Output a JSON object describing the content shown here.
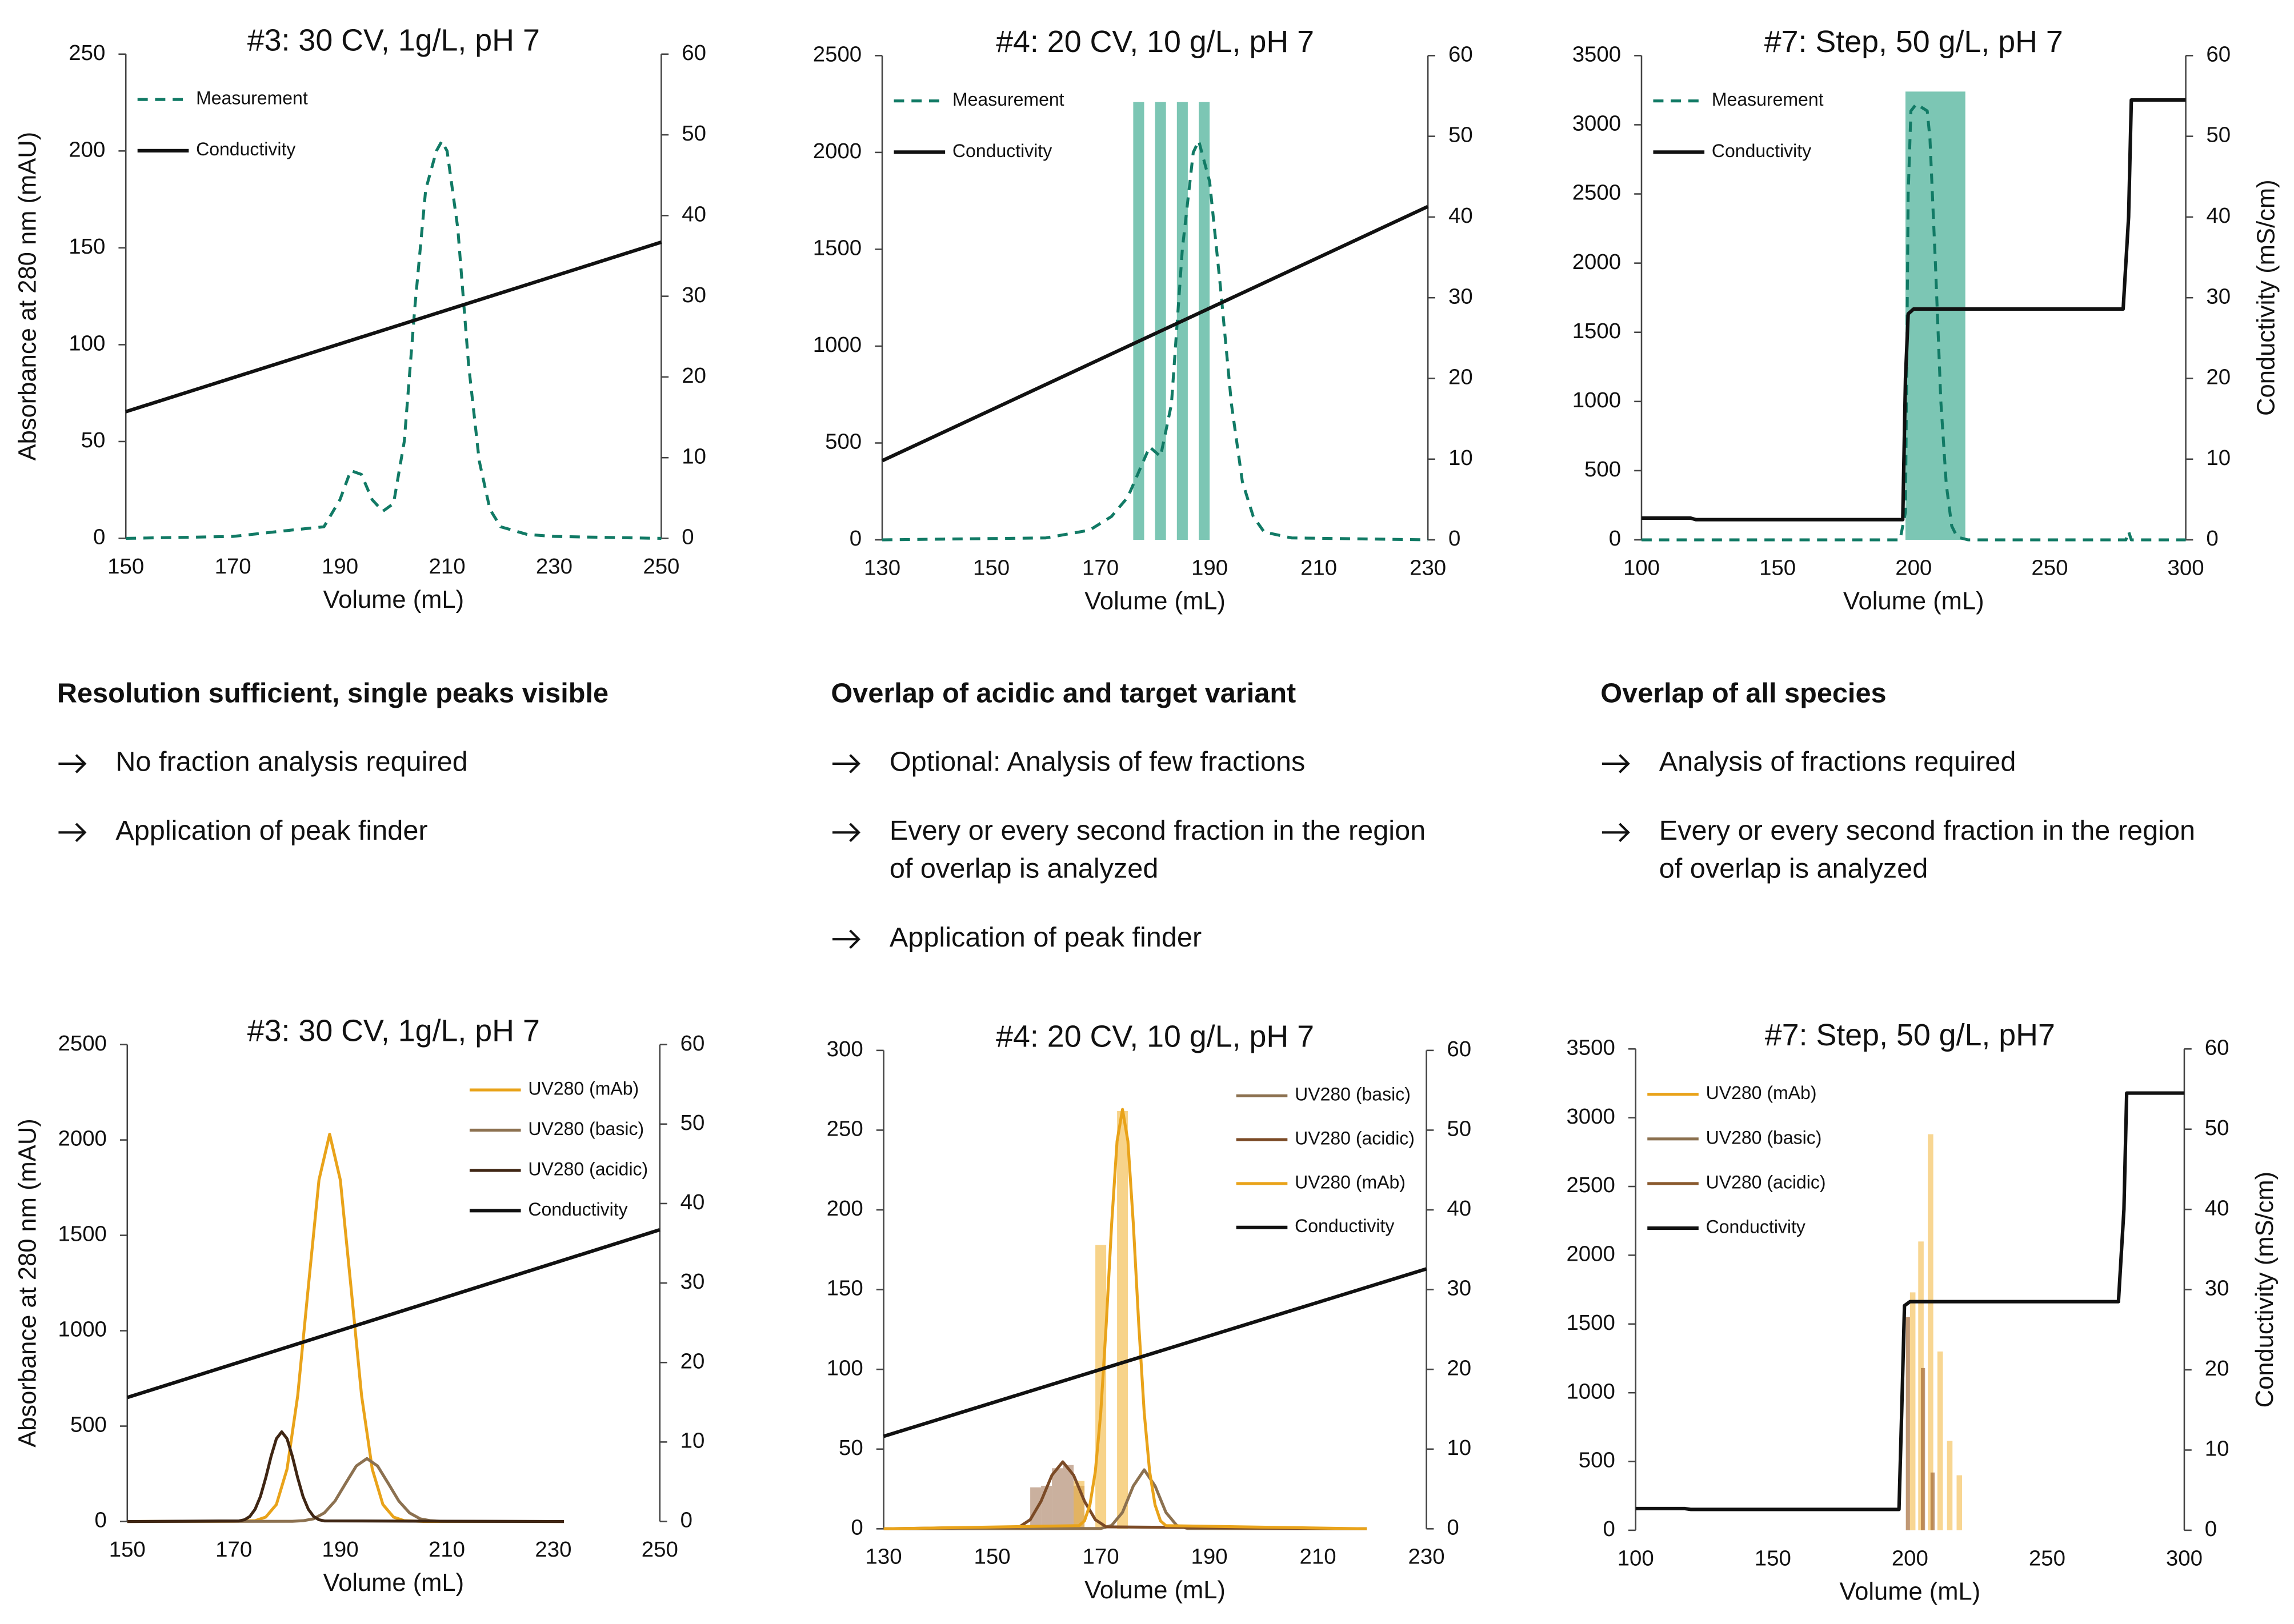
{
  "chart_data": [
    {
      "type": "line",
      "title": "#3: 30 CV, 1g/L, pH 7",
      "xlabel": "Volume (mL)",
      "ylabel": "Absorbance at 280 nm (mAU)",
      "xlim": [
        150,
        250
      ],
      "xticks": [
        150,
        170,
        190,
        210,
        230,
        250
      ],
      "ylim": [
        0,
        250
      ],
      "yticks": [
        0,
        50,
        100,
        150,
        200,
        250
      ],
      "y2lim": [
        0,
        60
      ],
      "y2ticks": [
        0,
        10,
        20,
        30,
        40,
        50,
        60
      ],
      "legend": "upper left",
      "series": [
        {
          "name": "Measurement",
          "color": "#117a65",
          "dash": true,
          "x": [
            150,
            170,
            180,
            187,
            190,
            192,
            194,
            196,
            198,
            200,
            202,
            204,
            206,
            208,
            209,
            210,
            212,
            214,
            216,
            218,
            220,
            225,
            230,
            250
          ],
          "values": [
            0,
            1,
            4,
            6,
            20,
            35,
            33,
            20,
            14,
            18,
            50,
            120,
            180,
            200,
            205,
            200,
            160,
            90,
            40,
            15,
            6,
            2,
            1,
            0
          ]
        },
        {
          "name": "Conductivity",
          "color": "#111111",
          "axis": "y2",
          "x": [
            150,
            250
          ],
          "values": [
            15.7,
            36.7
          ]
        }
      ]
    },
    {
      "type": "line",
      "title": "#4: 20 CV, 10 g/L, pH 7",
      "xlabel": "Volume (mL)",
      "xlim": [
        130,
        230
      ],
      "xticks": [
        130,
        150,
        170,
        190,
        210,
        230
      ],
      "ylim": [
        0,
        2500
      ],
      "yticks": [
        0,
        500,
        1000,
        1500,
        2000,
        2500
      ],
      "y2lim": [
        0,
        60
      ],
      "y2ticks": [
        0,
        10,
        20,
        30,
        40,
        50,
        60
      ],
      "legend": "upper left",
      "fractions": [
        {
          "color": "#5fb9a3d0",
          "edges": [
            [
              176,
              178
            ],
            [
              180,
              182
            ],
            [
              184,
              186
            ],
            [
              188,
              190
            ]
          ],
          "values": [
            2260,
            2260,
            2260,
            2260
          ]
        }
      ],
      "series": [
        {
          "name": "Measurement",
          "color": "#117a65",
          "dash": true,
          "x": [
            130,
            160,
            168,
            172,
            175,
            177,
            179,
            181,
            183,
            185,
            187,
            188,
            190,
            192,
            194,
            196,
            198,
            200,
            205,
            230
          ],
          "values": [
            0,
            10,
            50,
            120,
            220,
            350,
            480,
            430,
            700,
            1500,
            2000,
            2060,
            1850,
            1300,
            700,
            300,
            120,
            40,
            10,
            0
          ]
        },
        {
          "name": "Conductivity",
          "color": "#111111",
          "axis": "y2",
          "x": [
            130,
            230
          ],
          "values": [
            9.8,
            41.3
          ]
        }
      ]
    },
    {
      "type": "line",
      "title": "#7: Step, 50 g/L, pH 7",
      "xlabel": "Volume (mL)",
      "y2label": "Conductivity (mS/cm)",
      "xlim": [
        100,
        300
      ],
      "xticks": [
        100,
        150,
        200,
        250,
        300
      ],
      "ylim": [
        0,
        3500
      ],
      "yticks": [
        0,
        500,
        1000,
        1500,
        2000,
        2500,
        3000,
        3500
      ],
      "y2lim": [
        0,
        60
      ],
      "y2ticks": [
        0,
        10,
        20,
        30,
        40,
        50,
        60
      ],
      "legend": "upper left",
      "fractions": [
        {
          "color": "#5fb9a3d0",
          "edges": [
            [
              197,
              219
            ]
          ],
          "values": [
            3240
          ]
        }
      ],
      "series": [
        {
          "name": "Measurement",
          "color": "#117a65",
          "dash": true,
          "x": [
            100,
            195,
            197,
            198,
            199,
            201,
            205,
            206,
            208,
            210,
            212,
            214,
            216,
            220,
            278,
            279,
            280,
            300
          ],
          "values": [
            0,
            0,
            200,
            2500,
            3100,
            3150,
            3100,
            2900,
            2000,
            1000,
            400,
            100,
            20,
            0,
            0,
            60,
            0,
            0
          ]
        },
        {
          "name": "Conductivity",
          "color": "#111111",
          "axis": "y2",
          "x": [
            100,
            118,
            120,
            196,
            197,
            198,
            200,
            277,
            279,
            280,
            300
          ],
          "values": [
            2.7,
            2.7,
            2.5,
            2.5,
            20,
            28,
            28.6,
            28.6,
            40,
            54.5,
            54.5
          ]
        }
      ]
    },
    {
      "type": "line",
      "title": "#3: 30 CV, 1g/L, pH 7",
      "xlabel": "Volume (mL)",
      "ylabel": "Absorbance at 280 nm (mAU)",
      "xlim": [
        150,
        250
      ],
      "xticks": [
        150,
        170,
        190,
        210,
        230,
        250
      ],
      "ylim": [
        0,
        2500
      ],
      "yticks": [
        0,
        500,
        1000,
        1500,
        2000,
        2500
      ],
      "y2lim": [
        0,
        60
      ],
      "y2ticks": [
        0,
        10,
        20,
        30,
        40,
        50,
        60
      ],
      "legend": "upper right",
      "series": [
        {
          "name": "UV280 (mAb)",
          "color": "#e9a31a",
          "x": [
            150,
            170,
            174,
            176,
            178,
            180,
            182,
            184,
            186,
            188,
            190,
            192,
            194,
            196,
            198,
            200,
            202,
            206,
            232
          ],
          "values": [
            0,
            1,
            4,
            23,
            89,
            275,
            659,
            1231,
            1791,
            2030,
            1791,
            1231,
            659,
            275,
            89,
            23,
            4,
            0,
            0
          ]
        },
        {
          "name": "UV280 (basic)",
          "color": "#8c7150",
          "x": [
            150,
            181,
            183,
            185,
            187,
            189,
            191,
            193,
            195,
            197,
            199,
            201,
            203,
            205,
            207,
            209,
            232
          ],
          "values": [
            0,
            1,
            4,
            14,
            45,
            107,
            200,
            291,
            330,
            291,
            200,
            107,
            45,
            14,
            4,
            1,
            0
          ]
        },
        {
          "name": "UV280 (acidic)",
          "color": "#3f2614",
          "x": [
            150,
            171,
            172,
            173,
            174,
            175,
            176,
            177,
            178,
            179,
            180,
            181,
            182,
            183,
            184,
            185,
            186,
            187,
            232
          ],
          "values": [
            0,
            3,
            9,
            26,
            64,
            131,
            229,
            341,
            434,
            470,
            434,
            341,
            229,
            131,
            64,
            26,
            9,
            3,
            0
          ]
        },
        {
          "name": "Conductivity",
          "color": "#111111",
          "axis": "y2",
          "x": [
            150,
            250
          ],
          "values": [
            15.6,
            36.7
          ]
        }
      ]
    },
    {
      "type": "line",
      "title": "#4: 20 CV, 10 g/L, pH 7",
      "xlabel": "Volume (mL)",
      "xlim": [
        130,
        230
      ],
      "xticks": [
        130,
        150,
        170,
        190,
        210,
        230
      ],
      "ylim": [
        0,
        300
      ],
      "yticks": [
        0,
        50,
        100,
        150,
        200,
        250,
        300
      ],
      "y2lim": [
        0,
        60
      ],
      "y2ticks": [
        0,
        10,
        20,
        30,
        40,
        50,
        60
      ],
      "legend": "upper right",
      "fractions": [
        {
          "color": "#9c6b4a88",
          "edges": [
            [
              157,
              159
            ],
            [
              159,
              161
            ],
            [
              161,
              163
            ],
            [
              163,
              165
            ],
            [
              165,
              167
            ]
          ],
          "values": [
            26,
            27,
            38,
            40,
            27
          ]
        },
        {
          "color": "#f2b53c99",
          "edges": [
            [
              165,
              167
            ],
            [
              169,
              171
            ],
            [
              173,
              175
            ]
          ],
          "values": [
            30,
            178,
            262
          ]
        }
      ],
      "series": [
        {
          "name": "UV280 (basic)",
          "color": "#8c7150",
          "x": [
            130,
            170,
            172,
            174,
            176,
            178,
            180,
            182,
            184,
            186,
            219
          ],
          "values": [
            0,
            0.2,
            2.1,
            10.3,
            26.9,
            37,
            26.9,
            10.3,
            2.1,
            0.2,
            0
          ]
        },
        {
          "name": "UV280 (acidic)",
          "color": "#7b4a26",
          "x": [
            130,
            155,
            157,
            159,
            161,
            163,
            165,
            167,
            169,
            171,
            219
          ],
          "values": [
            0,
            1.2,
            5.7,
            17.3,
            33.6,
            42,
            33.6,
            17.3,
            5.7,
            1.2,
            0
          ]
        },
        {
          "name": "UV280 (mAb)",
          "color": "#e9a31a",
          "x": [
            130,
            166,
            167,
            168,
            169,
            170,
            171,
            172,
            173,
            174,
            175,
            176,
            177,
            178,
            179,
            180,
            181,
            182,
            219
          ],
          "values": [
            0,
            2,
            5,
            15,
            36,
            73,
            128,
            191,
            243,
            263,
            243,
            191,
            128,
            73,
            36,
            15,
            5,
            2,
            0
          ]
        },
        {
          "name": "Conductivity",
          "color": "#111111",
          "axis": "y2",
          "x": [
            130,
            230
          ],
          "values": [
            11.6,
            32.6
          ]
        }
      ]
    },
    {
      "type": "line",
      "title": "#7: Step, 50 g/L, pH7",
      "xlabel": "Volume (mL)",
      "y2label": "Conductivity (mS/cm)",
      "xlim": [
        100,
        300
      ],
      "xticks": [
        100,
        150,
        200,
        250,
        300
      ],
      "ylim": [
        0,
        3500
      ],
      "yticks": [
        0,
        500,
        1000,
        1500,
        2000,
        2500,
        3000,
        3500
      ],
      "y2lim": [
        0,
        60
      ],
      "y2ticks": [
        0,
        10,
        20,
        30,
        40,
        50,
        60
      ],
      "legend": "upper left",
      "fractions": [
        {
          "color": "#f5c25caa",
          "edges": [
            [
              200,
              202
            ],
            [
              203,
              205
            ],
            [
              206.5,
              208.5
            ],
            [
              210,
              212
            ],
            [
              213.5,
              215.5
            ],
            [
              217,
              219
            ]
          ],
          "values": [
            1730,
            2100,
            2880,
            1300,
            650,
            400
          ]
        },
        {
          "color": "#a06530aa",
          "edges": [
            [
              198.5,
              200
            ],
            [
              204,
              205.5
            ],
            [
              207.5,
              209
            ]
          ],
          "values": [
            1550,
            1180,
            420
          ]
        }
      ],
      "series": [
        {
          "name": "UV280 (mAb)",
          "color": "#e9a31a",
          "x": [],
          "values": []
        },
        {
          "name": "UV280 (basic)",
          "color": "#8c7150",
          "x": [],
          "values": []
        },
        {
          "name": "UV280 (acidic)",
          "color": "#8a5a2e",
          "x": [],
          "values": []
        },
        {
          "name": "Conductivity",
          "color": "#111111",
          "axis": "y2",
          "x": [
            100,
            118,
            120,
            196,
            197,
            198,
            200,
            276,
            278,
            279,
            300
          ],
          "values": [
            2.7,
            2.7,
            2.6,
            2.6,
            15,
            28,
            28.5,
            28.5,
            40,
            54.5,
            54.5
          ]
        }
      ]
    }
  ],
  "text_blocks": [
    {
      "heading": "Resolution sufficient, single peaks visible",
      "items": [
        "No fraction analysis required",
        "Application of peak finder"
      ]
    },
    {
      "heading": "Overlap of acidic and target variant",
      "items": [
        "Optional: Analysis of few fractions",
        "Every or every second fraction in the region of overlap is analyzed",
        "Application of peak finder"
      ]
    },
    {
      "heading": "Overlap of all species",
      "items": [
        "Analysis of fractions required",
        "Every or every second fraction in the region of overlap is analyzed"
      ]
    }
  ]
}
